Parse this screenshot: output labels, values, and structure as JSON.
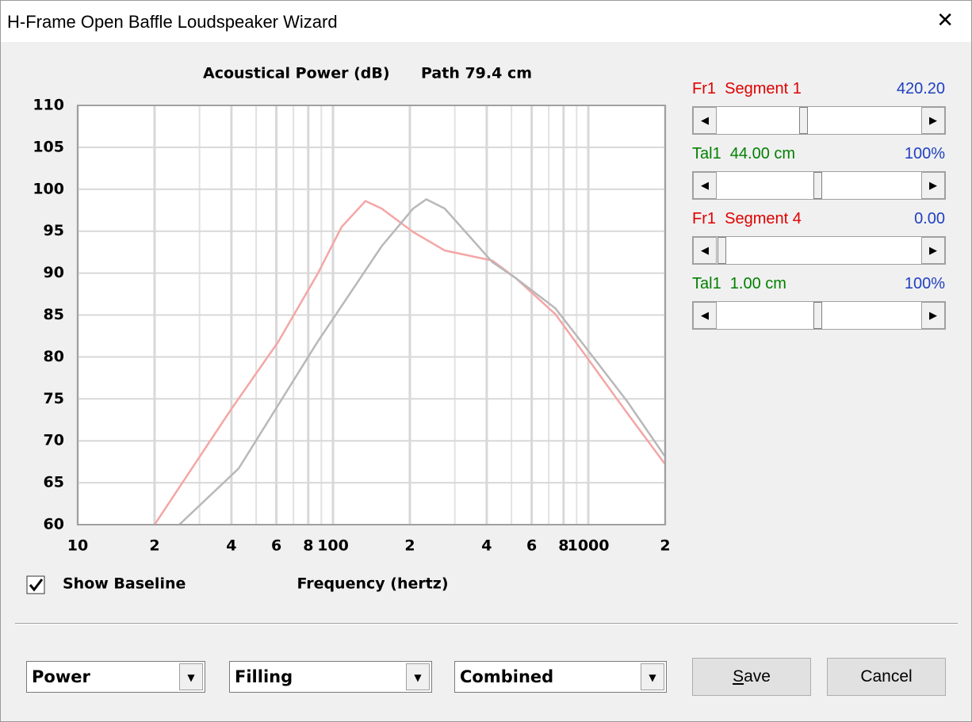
{
  "window": {
    "title": "H-Frame Open Baffle Loudspeaker Wizard"
  },
  "chart_data": {
    "type": "line",
    "title": "Acoustical Power (dB)",
    "subtitle": "Path 79.4 cm",
    "x_label": "Frequency (hertz)",
    "x_scale": "log",
    "grid": true,
    "xlim": [
      10,
      2000
    ],
    "ylim": [
      60,
      110
    ],
    "xticks": [
      10,
      {
        "value": 20,
        "label": "2"
      },
      {
        "value": 40,
        "label": "4"
      },
      {
        "value": 60,
        "label": "6"
      },
      {
        "value": 80,
        "label": "8"
      },
      100,
      {
        "value": 200,
        "label": "2"
      },
      {
        "value": 400,
        "label": "4"
      },
      {
        "value": 600,
        "label": "6"
      },
      {
        "value": 800,
        "label": "8"
      },
      1000,
      {
        "value": 2000,
        "label": "2"
      }
    ],
    "yticks": [
      60,
      65,
      70,
      75,
      80,
      85,
      90,
      95,
      100,
      105,
      110
    ],
    "series": [
      {
        "color": "#f4a6a6",
        "x": [
          20,
          40,
          61,
          87,
          108,
          134,
          155,
          206,
          274,
          364,
          421,
          520,
          743,
          990,
          1420,
          2000
        ],
        "values": [
          60,
          73.8,
          81.8,
          89.9,
          95.5,
          98.6,
          97.7,
          94.9,
          92.7,
          91.9,
          91.5,
          89.4,
          85.1,
          79.9,
          73.3,
          67.2
        ]
      },
      {
        "color": "#b8b8b8",
        "x": [
          25,
          42.7,
          87,
          155,
          206,
          232,
          274,
          421,
          520,
          743,
          990,
          1420,
          2000
        ],
        "values": [
          60,
          66.7,
          81.8,
          93.2,
          97.7,
          98.8,
          97.7,
          91.3,
          89.4,
          85.8,
          80.9,
          74.7,
          68.1
        ]
      }
    ]
  },
  "sliders": [
    {
      "label": "Fr1  Segment 1",
      "value": "420.20",
      "label_color": "#e00000"
    },
    {
      "label": "Tal1  44.00 cm",
      "value": "100%",
      "label_color": "#008000"
    },
    {
      "label": "Fr1  Segment 4",
      "value": "0.00",
      "label_color": "#e00000"
    },
    {
      "label": "Tal1  1.00 cm",
      "value": "100%",
      "label_color": "#008000"
    }
  ],
  "checkbox": {
    "label": "Show Baseline",
    "checked": true
  },
  "dropdowns": [
    "Power",
    "Filling",
    "Combined"
  ],
  "buttons": [
    "Save",
    "Cancel"
  ]
}
